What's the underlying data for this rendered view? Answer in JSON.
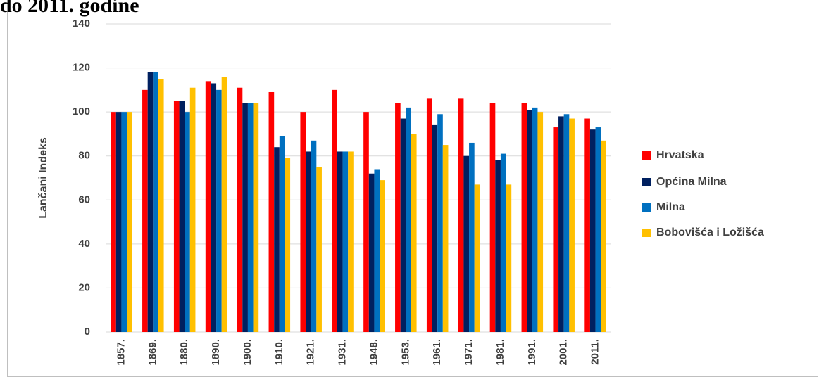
{
  "chart_data": {
    "type": "bar",
    "title": "do 2011. godine",
    "y_label": "Lančani Indeks",
    "categories": [
      "1857.",
      "1869.",
      "1880.",
      "1890.",
      "1900.",
      "1910.",
      "1921.",
      "1931.",
      "1948.",
      "1953.",
      "1961.",
      "1971.",
      "1981.",
      "1991.",
      "2001.",
      "2011."
    ],
    "series": [
      {
        "name": "Hrvatska",
        "color": "#ff0000",
        "values": [
          100,
          110,
          105,
          114,
          111,
          109,
          100,
          110,
          100,
          104,
          106,
          106,
          104,
          104,
          93,
          97
        ]
      },
      {
        "name": "Općina Milna",
        "color": "#002060",
        "values": [
          100,
          118,
          105,
          113,
          104,
          84,
          82,
          82,
          72,
          97,
          94,
          80,
          78,
          101,
          98,
          92
        ]
      },
      {
        "name": "Milna",
        "color": "#0070c0",
        "values": [
          100,
          118,
          100,
          110,
          104,
          89,
          87,
          82,
          74,
          102,
          99,
          86,
          81,
          102,
          99,
          93
        ]
      },
      {
        "name": "Bobovišća i Ložišća",
        "color": "#ffc000",
        "values": [
          100,
          115,
          111,
          116,
          104,
          79,
          75,
          82,
          69,
          90,
          85,
          67,
          67,
          100,
          97,
          87
        ]
      }
    ],
    "ylim": [
      0,
      140
    ],
    "yticks": [
      0,
      20,
      40,
      60,
      80,
      100,
      120,
      140
    ],
    "grid": true,
    "legend": "right"
  }
}
